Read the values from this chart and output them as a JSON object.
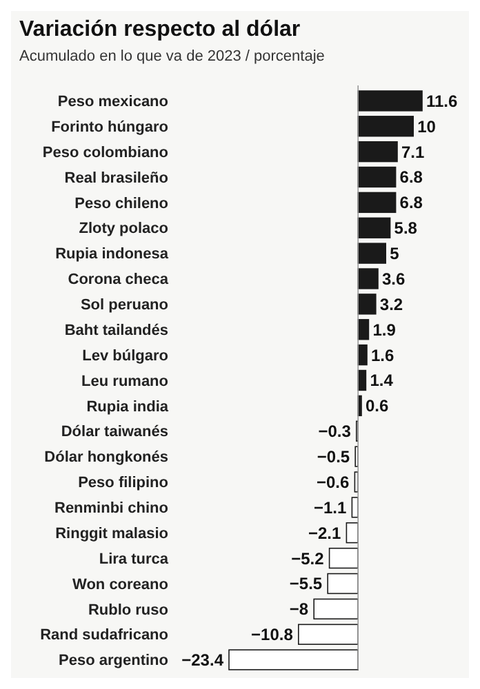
{
  "chart_data": {
    "type": "bar",
    "orientation": "horizontal",
    "title": "Variación respecto al dólar",
    "subtitle": "Acumulado en lo que va de 2023 / porcentaje",
    "categories": [
      "Peso mexicano",
      "Forinto húngaro",
      "Peso colombiano",
      "Real brasileño",
      "Peso chileno",
      "Zloty polaco",
      "Rupia indonesa",
      "Corona checa",
      "Sol peruano",
      "Baht tailandés",
      "Lev búlgaro",
      "Leu rumano",
      "Rupia india",
      "Dólar taiwanés",
      "Dólar hongkonés",
      "Peso filipino",
      "Renminbi chino",
      "Ringgit malasio",
      "Lira turca",
      "Won coreano",
      "Rublo ruso",
      "Rand sudafricano",
      "Peso argentino"
    ],
    "values": [
      11.6,
      10,
      7.1,
      6.8,
      6.8,
      5.8,
      5,
      3.6,
      3.2,
      1.9,
      1.6,
      1.4,
      0.6,
      -0.3,
      -0.5,
      -0.6,
      -1.1,
      -2.1,
      -5.2,
      -5.5,
      -8,
      -10.8,
      -23.4
    ],
    "colors": [
      "#1a1a1a",
      "#1a1a1a",
      "#1a1a1a",
      "#1a1a1a",
      "#1a1a1a",
      "#1a1a1a",
      "#1a1a1a",
      "#1a1a1a",
      "#1a1a1a",
      "#1a1a1a",
      "#1a1a1a",
      "#1a1a1a",
      "#1a1a1a",
      "#ffffff",
      "#ffffff",
      "#ffffff",
      "#ffffff",
      "#ffffff",
      "#ffffff",
      "#ffffff",
      "#ffffff",
      "#ffffff",
      "#ffffff"
    ],
    "xlim": [
      -23.4,
      11.6
    ],
    "data_labels": true,
    "tick_labels": "y"
  }
}
